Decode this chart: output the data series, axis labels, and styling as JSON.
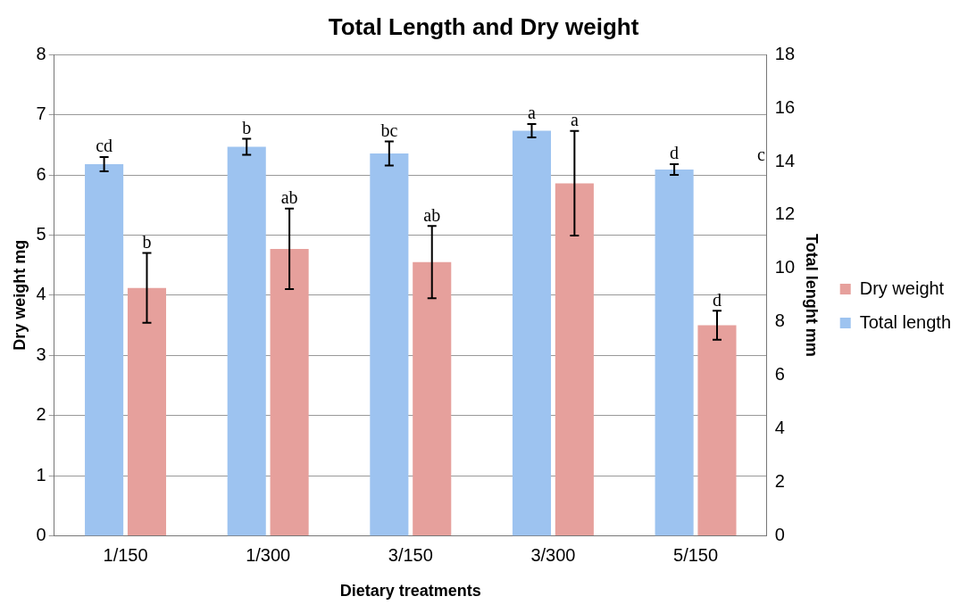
{
  "chart_data": {
    "type": "bar",
    "title": "Total Length and Dry weight",
    "xlabel": "Dietary treatments",
    "ylabel": "Dry weight mg",
    "y2label": "Total lenght mm",
    "categories": [
      "1/150",
      "1/300",
      "3/150",
      "3/300",
      "5/150"
    ],
    "series": [
      {
        "name": "Total length",
        "color": "#9dc3f0",
        "axis": "y2",
        "values": [
          13.9,
          14.55,
          14.3,
          15.15,
          13.7
        ],
        "errors": [
          0.27,
          0.3,
          0.45,
          0.25,
          0.2
        ],
        "value_labels": [
          "cd",
          "b",
          "bc",
          "a",
          "d"
        ]
      },
      {
        "name": "Dry weight",
        "color": "#e6a09c",
        "axis": "y",
        "values": [
          4.12,
          4.77,
          4.55,
          5.86,
          3.5
        ],
        "errors": [
          0.58,
          0.67,
          0.6,
          0.87,
          0.24
        ],
        "value_labels": [
          "b",
          "ab",
          "ab",
          "a",
          "d"
        ]
      }
    ],
    "ylim": [
      0,
      8
    ],
    "yticks": [
      0,
      1,
      2,
      3,
      4,
      5,
      6,
      7,
      8
    ],
    "y2lim": [
      0,
      18
    ],
    "y2ticks": [
      0,
      2,
      4,
      6,
      8,
      10,
      12,
      14,
      16,
      18
    ],
    "grid": "y",
    "legend": "right",
    "annotations": [
      "c"
    ]
  }
}
